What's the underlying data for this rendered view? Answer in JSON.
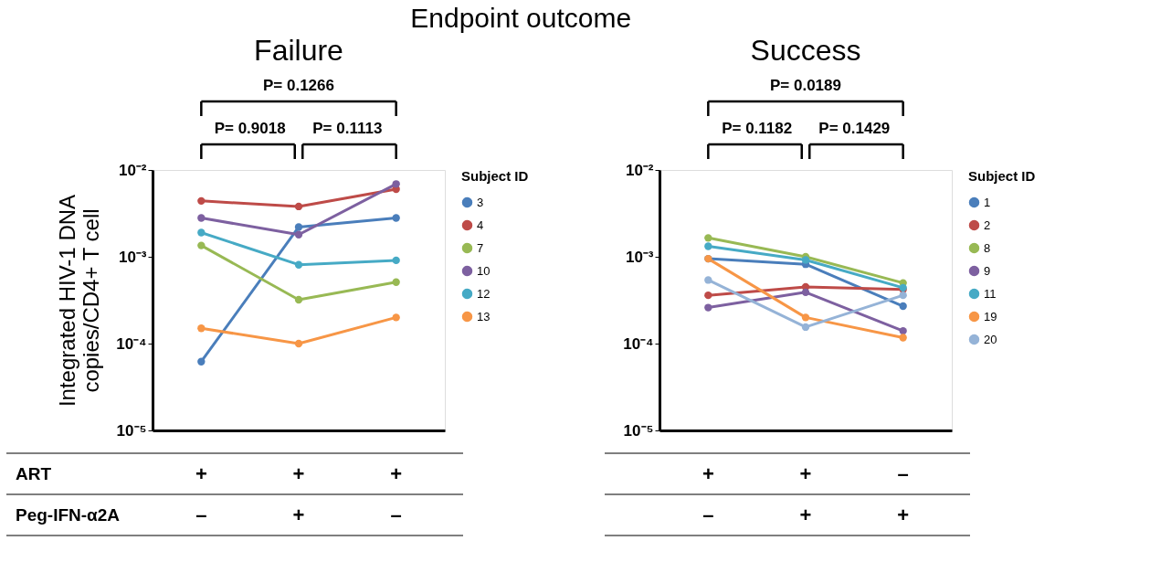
{
  "chart_data": [
    {
      "type": "line",
      "title": "Failure",
      "ylabel": "Integrated HIV-1 DNA\ncopies/CD4+ T cell",
      "legend_title": "Subject ID",
      "legend": "right",
      "marker": "circle",
      "log": true,
      "grid": false,
      "categories": [
        "+\n–",
        "+\n+",
        "+\n–"
      ],
      "ylim": [
        1e-05,
        0.01
      ],
      "yticks": [
        {
          "value": 0.01,
          "label": "10⁻²"
        },
        {
          "value": 0.001,
          "label": "10⁻³"
        },
        {
          "value": 0.0001,
          "label": "10⁻⁴"
        },
        {
          "value": 1e-05,
          "label": "10⁻⁵"
        }
      ],
      "series": [
        {
          "name": "3",
          "color": "#4a7ebb",
          "values": [
            6.2e-05,
            0.0022,
            0.0028
          ]
        },
        {
          "name": "4",
          "color": "#be4b48",
          "values": [
            0.0044,
            0.0038,
            0.006
          ]
        },
        {
          "name": "7",
          "color": "#98b954",
          "values": [
            0.00135,
            0.00032,
            0.00051
          ]
        },
        {
          "name": "10",
          "color": "#7d60a0",
          "values": [
            0.0028,
            0.0018,
            0.0069
          ]
        },
        {
          "name": "12",
          "color": "#46aac5",
          "values": [
            0.0019,
            0.00081,
            0.00091
          ]
        },
        {
          "name": "13",
          "color": "#f79646",
          "values": [
            0.00015,
            0.0001,
            0.0002
          ]
        }
      ],
      "annotations": [
        "Endpoint outcome",
        "P= 0.1266",
        "P= 0.9018",
        "P= 0.1113",
        "ART",
        "Peg-IFN-α2A"
      ]
    },
    {
      "type": "line",
      "title": "Success",
      "legend_title": "Subject ID",
      "legend": "right",
      "marker": "circle",
      "log": true,
      "grid": false,
      "categories": [
        "+\n–",
        "+\n+",
        "–\n+"
      ],
      "ylim": [
        1e-05,
        0.01
      ],
      "yticks": [
        {
          "value": 0.01,
          "label": "10⁻²"
        },
        {
          "value": 0.001,
          "label": "10⁻³"
        },
        {
          "value": 0.0001,
          "label": "10⁻⁴"
        },
        {
          "value": 1e-05,
          "label": "10⁻⁵"
        }
      ],
      "series": [
        {
          "name": "1",
          "color": "#4a7ebb",
          "values": [
            0.00095,
            0.00082,
            0.00027
          ]
        },
        {
          "name": "2",
          "color": "#be4b48",
          "values": [
            0.00036,
            0.00045,
            0.00042
          ]
        },
        {
          "name": "8",
          "color": "#98b954",
          "values": [
            0.00165,
            0.001,
            0.0005
          ]
        },
        {
          "name": "9",
          "color": "#7d60a0",
          "values": [
            0.00026,
            0.00039,
            0.00014
          ]
        },
        {
          "name": "11",
          "color": "#46aac5",
          "values": [
            0.00132,
            0.00092,
            0.00044
          ]
        },
        {
          "name": "19",
          "color": "#f79646",
          "values": [
            0.00095,
            0.0002,
            0.000117
          ]
        },
        {
          "name": "20",
          "color": "#95b3d7",
          "values": [
            0.00054,
            0.000155,
            0.00036
          ]
        }
      ],
      "annotations": [
        "P= 0.0189",
        "P= 0.1182",
        "P= 0.1429"
      ]
    }
  ]
}
